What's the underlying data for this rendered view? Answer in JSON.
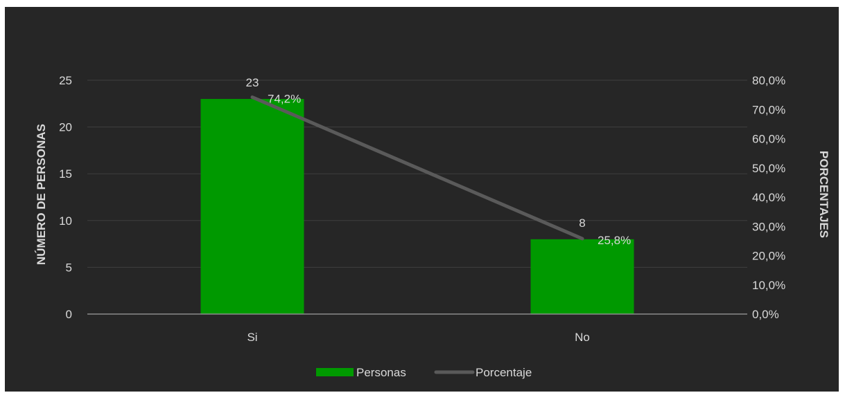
{
  "chart_data": {
    "type": "bar",
    "title": "",
    "categories": [
      "Si",
      "No"
    ],
    "series": [
      {
        "name": "Personas",
        "chart_type": "bar",
        "axis": "left",
        "values": [
          23,
          8
        ],
        "labels": [
          "23",
          "8"
        ],
        "color": "#009900"
      },
      {
        "name": "Porcentaje",
        "chart_type": "line",
        "axis": "right",
        "values": [
          74.2,
          25.8
        ],
        "labels": [
          "74,2%",
          "25,8%"
        ],
        "color": "#5a5a5a"
      }
    ],
    "ylabel": "NÚMERO DE PERSONAS",
    "y2label": "PORCENTAJES",
    "ylim": [
      0,
      25
    ],
    "y2lim": [
      0,
      80
    ],
    "yticks": [
      "0",
      "5",
      "10",
      "15",
      "20",
      "25"
    ],
    "y2ticks": [
      "0,0%",
      "10,0%",
      "20,0%",
      "30,0%",
      "40,0%",
      "50,0%",
      "60,0%",
      "70,0%",
      "80,0%"
    ],
    "grid": true,
    "legend_position": "bottom",
    "colors": {
      "background": "#262626",
      "text": "#d9d9d9",
      "gridline": "#3f3f3f",
      "axis_line": "#8c8c8c"
    }
  }
}
